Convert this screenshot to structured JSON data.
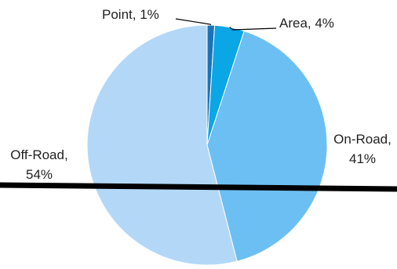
{
  "chart_data": {
    "type": "pie",
    "title": "",
    "slices": [
      {
        "name": "Point",
        "value": 1,
        "label": "Point, 1%",
        "color": "#1a73b8"
      },
      {
        "name": "Area",
        "value": 4,
        "label": "Area, 4%",
        "color": "#0aa6e6"
      },
      {
        "name": "On-Road",
        "value": 41,
        "label_lines": [
          "On-Road,",
          "41%"
        ],
        "color": "#6cbff2"
      },
      {
        "name": "Off-Road",
        "value": 54,
        "label_lines": [
          "Off-Road,",
          "54%"
        ],
        "color": "#b3d8f7"
      }
    ],
    "legend": "none"
  },
  "overlay": {
    "line_color": "#000000"
  }
}
